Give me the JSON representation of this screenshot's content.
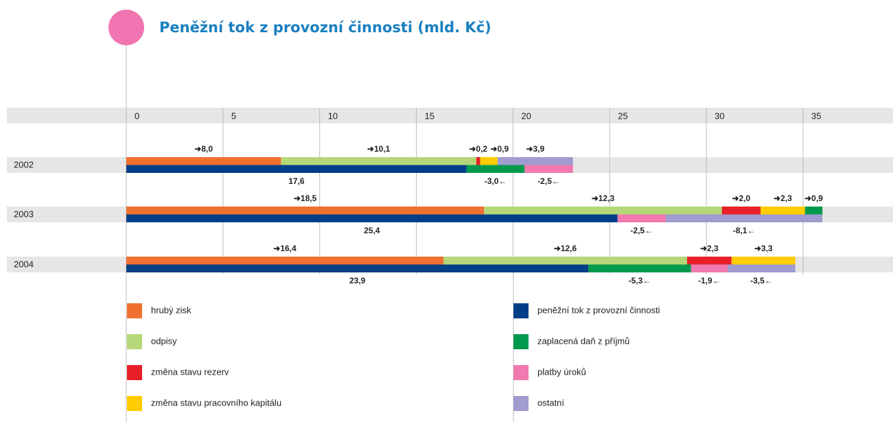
{
  "chart_data": {
    "type": "waterfall-bar",
    "title": "Peněžní tok z provozní činnosti (mld. Kč)",
    "categories": [
      "2002",
      "2003",
      "2004"
    ],
    "xlim": [
      0,
      35
    ],
    "xticks": [
      0,
      5,
      10,
      15,
      20,
      25,
      30,
      35
    ],
    "grid": true,
    "total_series": 4,
    "series": [
      {
        "name": "hrubý zisk",
        "color": "#f07030",
        "values": [
          8.0,
          18.5,
          16.4
        ],
        "value_labels": [
          "➜8,0",
          "➜18,5",
          "➜16,4"
        ]
      },
      {
        "name": "odpisy",
        "color": "#b5d77a",
        "values": [
          10.1,
          12.3,
          12.6
        ],
        "value_labels": [
          "➜10,1",
          "➜12,3",
          "➜12,6"
        ]
      },
      {
        "name": "změna stavu rezerv",
        "color": "#e8202a",
        "values": [
          0.2,
          2.0,
          2.3
        ],
        "value_labels": [
          "➜0,2",
          "➜2,0",
          "➜2,3"
        ]
      },
      {
        "name": "změna stavu pracovního kapitálu",
        "color": "#ffcc00",
        "values": [
          0.9,
          2.3,
          3.3
        ],
        "value_labels": [
          "➜0,9",
          "➜2,3",
          "➜3,3"
        ]
      },
      {
        "name": "peněžní tok z provozní činnosti",
        "color": "#003f87",
        "values": [
          17.6,
          25.4,
          23.9
        ],
        "value_labels": [
          "17,6",
          "25,4",
          "23,9"
        ]
      },
      {
        "name": "zaplacená daň z příjmů",
        "color": "#009a4e",
        "values": [
          -3.0,
          0.9,
          -5.3
        ],
        "value_labels": [
          "-3,0←",
          "➜0,9",
          "-5,3←"
        ]
      },
      {
        "name": "platby úroků",
        "color": "#f079b0",
        "values": [
          -2.5,
          -2.5,
          -1.9
        ],
        "value_labels": [
          "-2,5←",
          "-2,5←",
          "-1,9←"
        ]
      },
      {
        "name": "ostatní",
        "color": "#a09ccf",
        "values": [
          3.9,
          -8.1,
          -3.5
        ],
        "value_labels": [
          "➜3,9",
          "-8,1←",
          "-3,5←"
        ]
      }
    ]
  }
}
